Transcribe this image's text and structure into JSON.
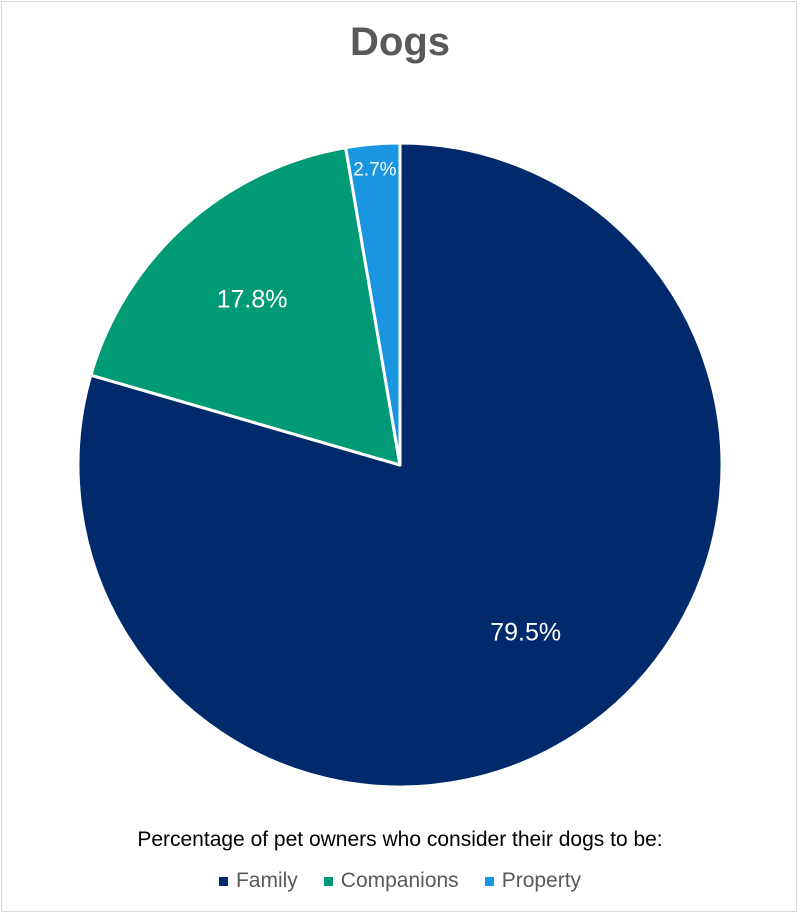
{
  "chart_data": {
    "type": "pie",
    "title": "Dogs",
    "subtitle": "Percentage of pet owners who consider their dogs to be:",
    "categories": [
      "Family",
      "Companions",
      "Property"
    ],
    "values": [
      79.5,
      17.8,
      2.7
    ],
    "labels": [
      "79.5%",
      "17.8%",
      "2.7%"
    ],
    "colors": [
      "#002a6c",
      "#009a76",
      "#1a96e0"
    ],
    "start_angle_deg": 0,
    "direction": "clockwise",
    "legend_position": "bottom"
  },
  "legend": [
    {
      "label": "Family",
      "color": "#002a6c"
    },
    {
      "label": "Companions",
      "color": "#009a76"
    },
    {
      "label": "Property",
      "color": "#1a96e0"
    }
  ]
}
